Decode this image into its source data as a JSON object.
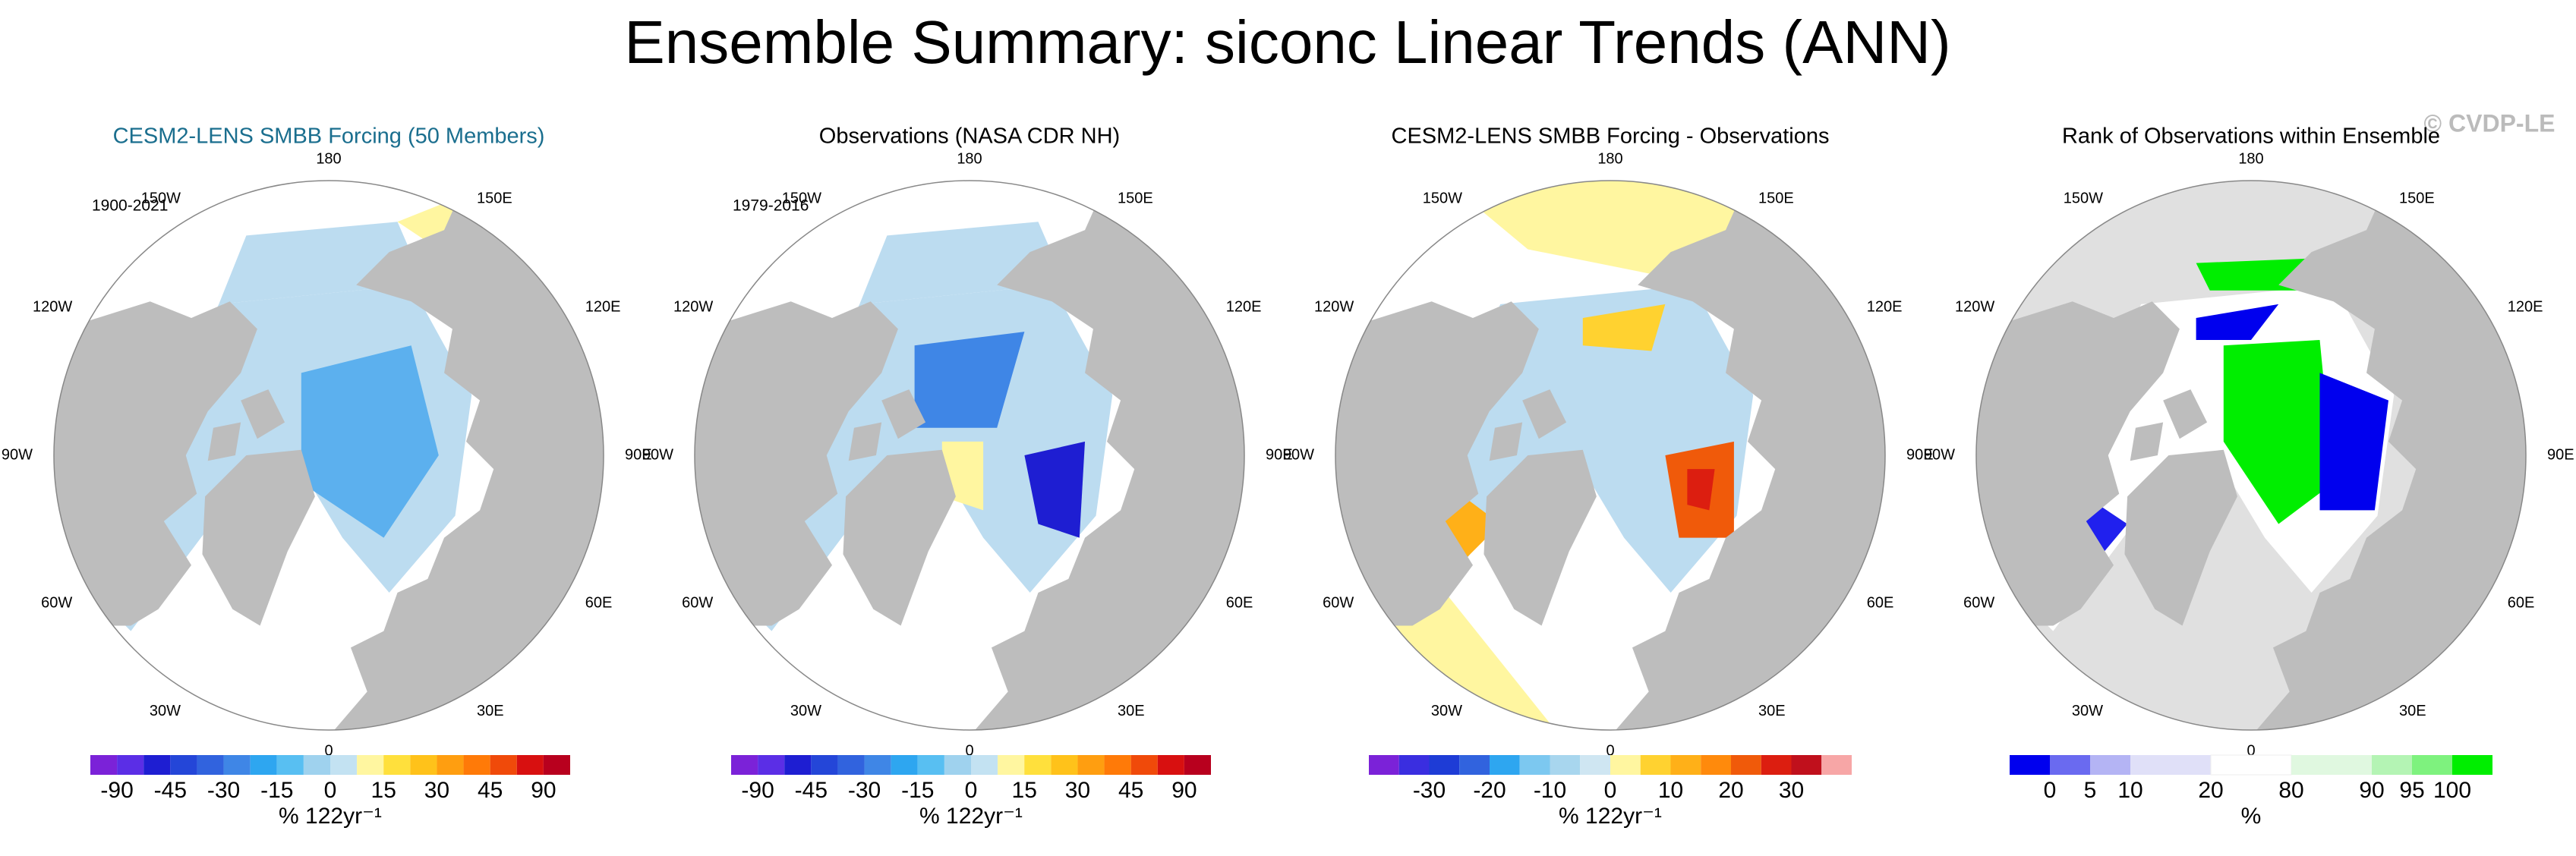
{
  "title": "Ensemble Summary: siconc Linear Trends (ANN)",
  "watermark": "© CVDP-LE",
  "longitude_labels": [
    "180",
    "150E",
    "120E",
    "90E",
    "60E",
    "30E",
    "0",
    "30W",
    "60W",
    "90W",
    "120W",
    "150W"
  ],
  "panels": [
    {
      "title": "CESM2-LENS SMBB Forcing (50 Members)",
      "period": "1900-2021",
      "colorbar": {
        "colors": [
          "#7b22d8",
          "#5b2ee6",
          "#1e1ed2",
          "#2446d8",
          "#3163de",
          "#3f86e6",
          "#2ea6f0",
          "#58bff2",
          "#9fd2ee",
          "#c3e2f2",
          "#fff6a0",
          "#ffe03c",
          "#ffc21a",
          "#ff9e10",
          "#ff7a08",
          "#f04a0a",
          "#d81010",
          "#b8001e"
        ],
        "labels": [
          -90,
          -45,
          -30,
          -15,
          0,
          15,
          30,
          45,
          90
        ],
        "unit": "% 122yr⁻¹"
      }
    },
    {
      "title": "Observations (NASA CDR NH)",
      "period": "1979-2016",
      "colorbar": {
        "colors": [
          "#7b22d8",
          "#5b2ee6",
          "#1e1ed2",
          "#2446d8",
          "#3163de",
          "#3f86e6",
          "#2ea6f0",
          "#58bff2",
          "#9fd2ee",
          "#c3e2f2",
          "#fff6a0",
          "#ffe03c",
          "#ffc21a",
          "#ff9e10",
          "#ff7a08",
          "#f04a0a",
          "#d81010",
          "#b8001e"
        ],
        "labels": [
          -90,
          -45,
          -30,
          -15,
          0,
          15,
          30,
          45,
          90
        ],
        "unit": "% 122yr⁻¹"
      }
    },
    {
      "title": "CESM2-LENS SMBB Forcing - Observations",
      "colorbar": {
        "colors": [
          "#7b22d8",
          "#3a2ee0",
          "#1e3cd6",
          "#3163de",
          "#2ea6f0",
          "#7cc8f0",
          "#a8d6ee",
          "#cfe6f2",
          "#fff6a0",
          "#ffd230",
          "#ffb018",
          "#ff8a0c",
          "#f05a0a",
          "#dc1e10",
          "#c0101c",
          "#f7a6a6"
        ],
        "labels": [
          -30,
          -20,
          -10,
          0,
          10,
          20,
          30
        ],
        "unit": "% 122yr⁻¹"
      }
    },
    {
      "title": "Rank of Observations within Ensemble",
      "colorbar": {
        "colors": [
          "#0000ee",
          "#6a6af0",
          "#b4b4f4",
          "#e0e0f8",
          "#ffffff",
          "#e0f8e0",
          "#b4f4b4",
          "#7ef27e",
          "#00ee00"
        ],
        "labels": [
          0,
          5,
          10,
          20,
          80,
          90,
          95,
          100
        ],
        "unit": "%"
      }
    }
  ]
}
